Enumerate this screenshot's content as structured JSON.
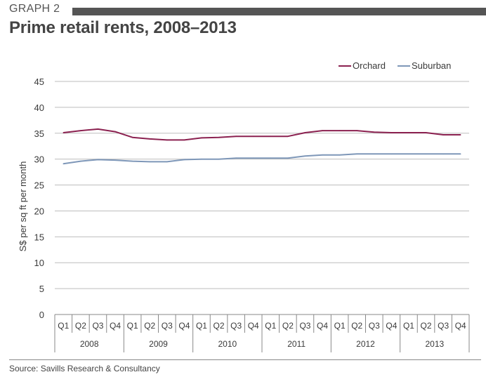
{
  "header": {
    "graph_label": "GRAPH 2",
    "title": "Prime retail rents, 2008–2013"
  },
  "footer": {
    "source": "Source: Savills Research & Consultancy"
  },
  "colors": {
    "orchard": "#8B2150",
    "suburban": "#7E97B8",
    "grid": "#bdbdbd",
    "axis": "#888888",
    "header_bar": "#555555"
  },
  "chart_data": {
    "type": "line",
    "title": "Prime retail rents, 2008–2013",
    "ylabel": "S$ per sq ft per month",
    "xlabel": "",
    "ylim": [
      0,
      45
    ],
    "yticks": [
      0,
      5,
      10,
      15,
      20,
      25,
      30,
      35,
      40,
      45
    ],
    "grid": true,
    "legend_position": "top-right",
    "quarters": [
      "Q1",
      "Q2",
      "Q3",
      "Q4",
      "Q1",
      "Q2",
      "Q3",
      "Q4",
      "Q1",
      "Q2",
      "Q3",
      "Q4",
      "Q1",
      "Q2",
      "Q3",
      "Q4",
      "Q1",
      "Q2",
      "Q3",
      "Q4",
      "Q1",
      "Q2",
      "Q3",
      "Q4"
    ],
    "years": [
      "2008",
      "2009",
      "2010",
      "2011",
      "2012",
      "2013"
    ],
    "series": [
      {
        "name": "Orchard",
        "color": "#8B2150",
        "values": [
          35.1,
          35.5,
          35.8,
          35.3,
          34.2,
          33.9,
          33.7,
          33.7,
          34.1,
          34.2,
          34.4,
          34.4,
          34.4,
          34.4,
          35.1,
          35.5,
          35.5,
          35.5,
          35.2,
          35.1,
          35.1,
          35.1,
          34.7,
          34.7
        ]
      },
      {
        "name": "Suburban",
        "color": "#7E97B8",
        "values": [
          29.1,
          29.6,
          29.9,
          29.8,
          29.6,
          29.5,
          29.5,
          29.9,
          30.0,
          30.0,
          30.2,
          30.2,
          30.2,
          30.2,
          30.6,
          30.8,
          30.8,
          31.0,
          31.0,
          31.0,
          31.0,
          31.0,
          31.0,
          31.0
        ]
      }
    ]
  }
}
